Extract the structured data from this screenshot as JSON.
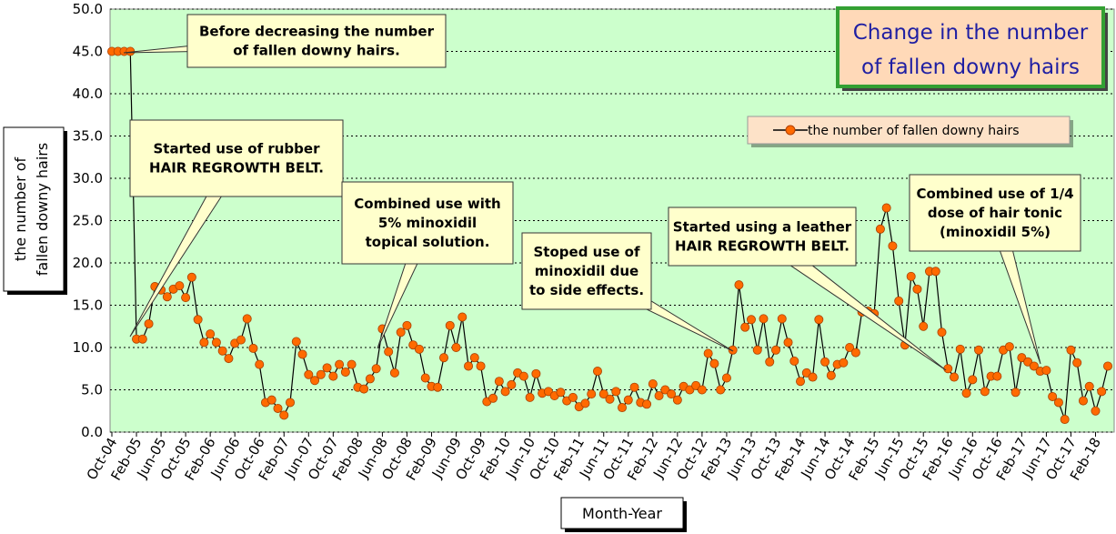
{
  "chart_data": {
    "type": "line",
    "title": [
      "Change in the number",
      "of fallen downy hairs"
    ],
    "xlabel": "Month-Year",
    "ylabel": [
      "the number of",
      "fallen downy hairs"
    ],
    "ylim": [
      0,
      50
    ],
    "yticks": [
      "0.0",
      "5.0",
      "10.0",
      "15.0",
      "20.0",
      "25.0",
      "30.0",
      "35.0",
      "40.0",
      "45.0",
      "50.0"
    ],
    "xticks": [
      "Oct-04",
      "Feb-05",
      "Jun-05",
      "Oct-05",
      "Feb-06",
      "Jun-06",
      "Oct-06",
      "Feb-07",
      "Jun-07",
      "Oct-07",
      "Feb-08",
      "Jun-08",
      "Oct-08",
      "Feb-09",
      "Jun-09",
      "Oct-09",
      "Feb-10",
      "Jun-10",
      "Oct-10",
      "Feb-11",
      "Jun-11",
      "Oct-11",
      "Feb-12",
      "Jun-12",
      "Oct-12",
      "Feb-13",
      "Jun-13",
      "Oct-13",
      "Feb-14",
      "Jun-14",
      "Oct-14",
      "Feb-15",
      "Jun-15",
      "Oct-15",
      "Feb-16",
      "Jun-16",
      "Oct-16",
      "Feb-17",
      "Jun-17",
      "Oct-17",
      "Feb-18"
    ],
    "grid": true,
    "legend_position": "top-right",
    "series": [
      {
        "name": "the number of  fallen downy hairs",
        "color": "#ff6a00",
        "values": [
          45,
          45,
          45,
          45,
          11,
          11,
          12.8,
          17.2,
          16.8,
          16.0,
          16.9,
          17.3,
          15.9,
          18.3,
          13.3,
          10.6,
          11.6,
          10.6,
          9.6,
          8.7,
          10.5,
          10.9,
          13.4,
          9.9,
          8.0,
          3.5,
          3.8,
          2.8,
          2.0,
          3.5,
          10.7,
          9.2,
          6.8,
          6.1,
          6.8,
          7.6,
          6.6,
          8.0,
          7.1,
          8.0,
          5.3,
          5.1,
          6.3,
          7.5,
          12.2,
          9.5,
          7.0,
          11.8,
          12.6,
          10.3,
          9.8,
          6.4,
          5.4,
          5.3,
          8.8,
          12.6,
          10.0,
          13.6,
          7.8,
          8.8,
          7.8,
          3.6,
          4.0,
          6.0,
          4.8,
          5.6,
          7.0,
          6.6,
          4.1,
          6.9,
          4.6,
          4.8,
          4.3,
          4.7,
          3.7,
          4.1,
          3.0,
          3.4,
          4.5,
          7.2,
          4.5,
          3.9,
          4.8,
          2.9,
          3.8,
          5.3,
          3.5,
          3.3,
          5.7,
          4.3,
          5.0,
          4.5,
          3.8,
          5.4,
          5.0,
          5.5,
          5.0,
          9.3,
          8.1,
          5.0,
          6.4,
          9.7,
          17.4,
          12.4,
          13.3,
          9.7,
          13.4,
          8.3,
          9.7,
          13.4,
          10.6,
          8.4,
          6.0,
          7.0,
          6.5,
          13.3,
          8.3,
          6.7,
          8.0,
          8.2,
          10.0,
          9.4,
          14.2,
          14.3,
          14.0,
          24.0,
          26.5,
          22.0,
          15.5,
          10.3,
          18.4,
          16.9,
          12.5,
          19.0,
          19.0,
          11.8,
          7.5,
          6.5,
          9.8,
          4.6,
          6.2,
          9.7,
          4.8,
          6.6,
          6.6,
          9.7,
          10.1,
          4.7,
          8.8,
          8.3,
          7.8,
          7.2,
          7.3,
          4.2,
          3.5,
          1.5,
          9.7,
          8.2,
          3.7,
          5.4,
          2.5,
          4.8,
          7.8
        ]
      }
    ],
    "annotations": [
      {
        "lines": [
          "Before decreasing the number",
          "of fallen downy hairs."
        ]
      },
      {
        "lines": [
          "Started use of rubber",
          "HAIR REGROWTH BELT."
        ]
      },
      {
        "lines": [
          "Combined use with",
          "5% minoxidil",
          "topical solution."
        ]
      },
      {
        "lines": [
          "Stoped use of",
          "minoxidil due",
          "to side effects."
        ]
      },
      {
        "lines": [
          "Started using a leather",
          "HAIR REGROWTH BELT."
        ]
      },
      {
        "lines": [
          "Combined use of 1/4",
          "dose of hair tonic",
          "(minoxidil 5%)"
        ]
      }
    ]
  }
}
